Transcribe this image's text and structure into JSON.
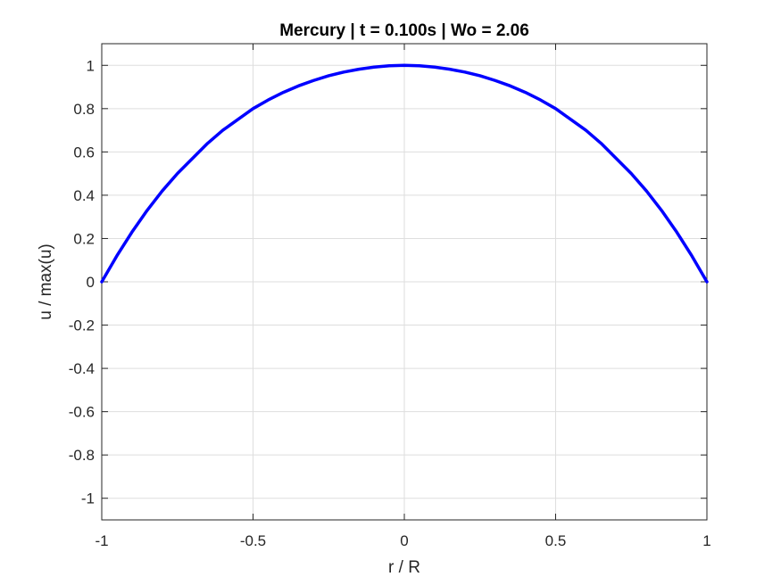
{
  "chart_data": {
    "type": "line",
    "title": "Mercury | t = 0.100s | Wo = 2.06",
    "xlabel": "r / R",
    "ylabel": "u / max(u)",
    "xlim": [
      -1,
      1
    ],
    "ylim": [
      -1.1,
      1.1
    ],
    "grid": true,
    "xticks": [
      -1,
      -0.5,
      0,
      0.5,
      1
    ],
    "xtick_labels": [
      "-1",
      "-0.5",
      "0",
      "0.5",
      "1"
    ],
    "yticks": [
      -1,
      -0.8,
      -0.6,
      -0.4,
      -0.2,
      0,
      0.2,
      0.4,
      0.6,
      0.8,
      1
    ],
    "ytick_labels": [
      "-1",
      "-0.8",
      "-0.6",
      "-0.4",
      "-0.2",
      "0",
      "0.2",
      "0.4",
      "0.6",
      "0.8",
      "1"
    ],
    "series": [
      {
        "color": "#0000ff",
        "x": [
          -1,
          -0.95,
          -0.9,
          -0.85,
          -0.8,
          -0.75,
          -0.7,
          -0.65,
          -0.6,
          -0.55,
          -0.5,
          -0.45,
          -0.4,
          -0.35,
          -0.3,
          -0.25,
          -0.2,
          -0.15,
          -0.1,
          -0.05,
          0,
          0.05,
          0.1,
          0.15,
          0.2,
          0.25,
          0.3,
          0.35,
          0.4,
          0.45,
          0.5,
          0.55,
          0.6,
          0.65,
          0.7,
          0.75,
          0.8,
          0.85,
          0.9,
          0.95,
          1
        ],
        "y": [
          0,
          0.12,
          0.23,
          0.33,
          0.42,
          0.5,
          0.57,
          0.64,
          0.7,
          0.75,
          0.8,
          0.84,
          0.875,
          0.905,
          0.93,
          0.952,
          0.969,
          0.982,
          0.992,
          0.998,
          1,
          0.998,
          0.992,
          0.982,
          0.969,
          0.952,
          0.93,
          0.905,
          0.875,
          0.84,
          0.8,
          0.75,
          0.7,
          0.64,
          0.57,
          0.5,
          0.42,
          0.33,
          0.23,
          0.12,
          0
        ]
      }
    ]
  }
}
